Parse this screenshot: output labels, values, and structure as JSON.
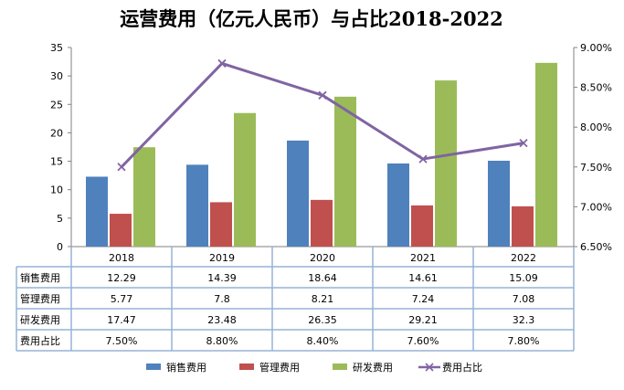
{
  "chart_data": {
    "type": "bar",
    "title": "运营费用（亿元人民币）与占比2018-2022",
    "categories": [
      "2018",
      "2019",
      "2020",
      "2021",
      "2022"
    ],
    "series": [
      {
        "name": "销售费用",
        "values": [
          12.29,
          14.39,
          18.64,
          14.61,
          15.09
        ],
        "display": [
          "12.29",
          "14.39",
          "18.64",
          "14.61",
          "15.09"
        ],
        "color": "#4F81BD",
        "kind": "bar"
      },
      {
        "name": "管理费用",
        "values": [
          5.77,
          7.8,
          8.21,
          7.24,
          7.08
        ],
        "display": [
          "5.77",
          "7.8",
          "8.21",
          "7.24",
          "7.08"
        ],
        "color": "#C0504D",
        "kind": "bar"
      },
      {
        "name": "研发费用",
        "values": [
          17.47,
          23.48,
          26.35,
          29.21,
          32.3
        ],
        "display": [
          "17.47",
          "23.48",
          "26.35",
          "29.21",
          "32.3"
        ],
        "color": "#9BBB59",
        "kind": "bar"
      },
      {
        "name": "费用占比",
        "values": [
          7.5,
          8.8,
          8.4,
          7.6,
          7.8
        ],
        "display": [
          "7.50%",
          "8.80%",
          "8.40%",
          "7.60%",
          "7.80%"
        ],
        "color": "#8064A2",
        "kind": "line",
        "axis": "right"
      }
    ],
    "ylim": [
      0,
      35
    ],
    "yticks": [
      "0",
      "5",
      "10",
      "15",
      "20",
      "25",
      "30",
      "35"
    ],
    "y2lim": [
      6.5,
      9.0
    ],
    "y2ticks": [
      "6.50%",
      "7.00%",
      "7.50%",
      "8.00%",
      "8.50%",
      "9.00%"
    ],
    "legend": "bottom",
    "grid": false
  }
}
